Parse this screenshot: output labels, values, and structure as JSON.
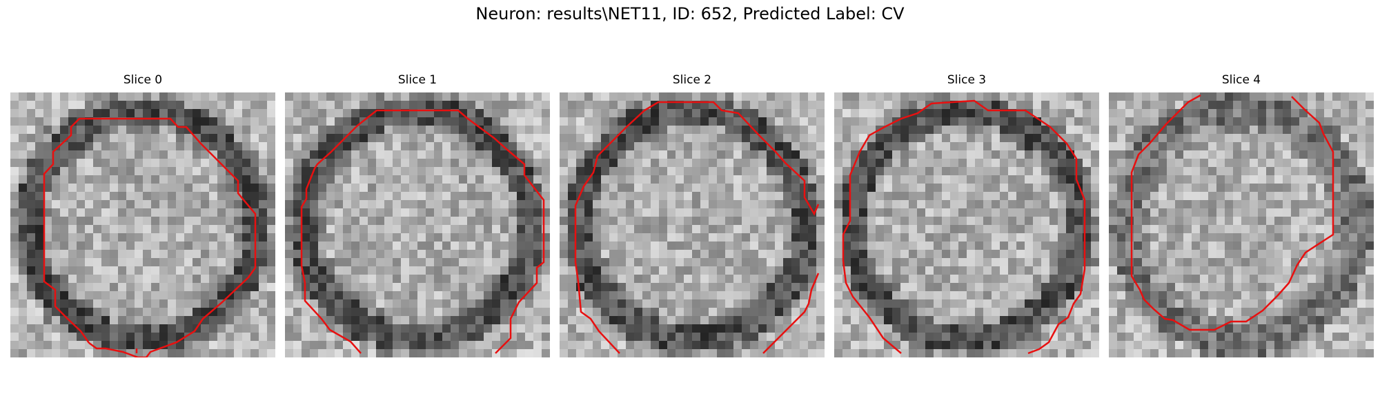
{
  "figure": {
    "title": "Neuron: results\\NET11, ID: 652, Predicted Label: CV",
    "contour_color": "#e81010"
  },
  "slices": [
    {
      "title": "Slice 0",
      "seed": 11,
      "ring_dark": true
    },
    {
      "title": "Slice 1",
      "seed": 23,
      "ring_dark": true
    },
    {
      "title": "Slice 2",
      "seed": 37,
      "ring_dark": true
    },
    {
      "title": "Slice 3",
      "seed": 41,
      "ring_dark": true
    },
    {
      "title": "Slice 4",
      "seed": 53,
      "ring_dark": false
    }
  ]
}
